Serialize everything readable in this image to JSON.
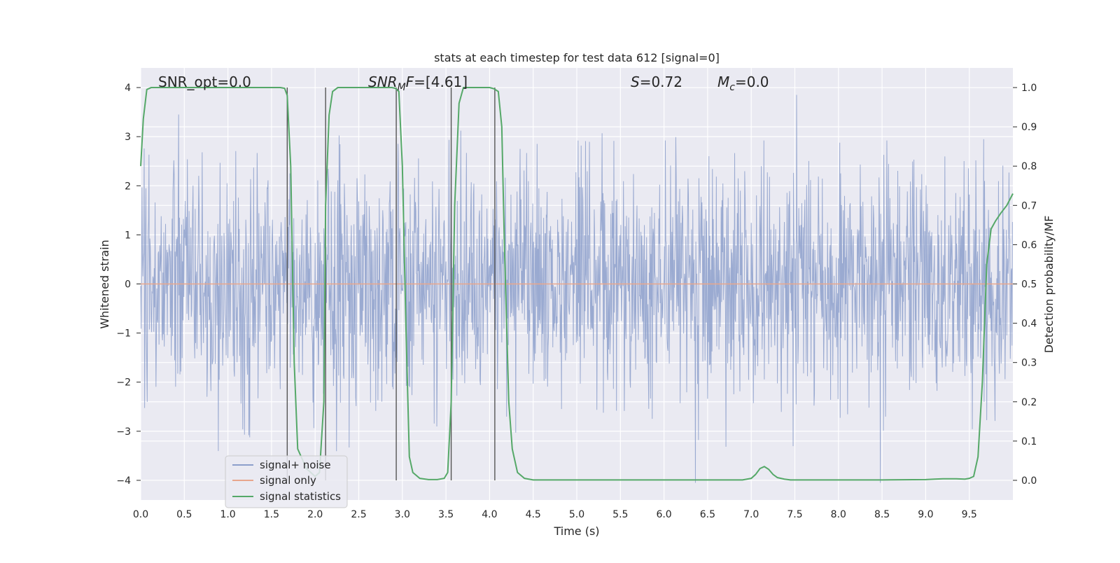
{
  "chart_data": {
    "type": "line",
    "title": "stats at each timestep for test data 612 [signal=0]",
    "xlabel": "Time (s)",
    "ylabel": "Whitened strain",
    "ylabel_right": "Detection probability/MF",
    "xlim": [
      0,
      10
    ],
    "ylim": [
      -4.4,
      4.4
    ],
    "ylim_right": [
      -0.05,
      1.05
    ],
    "grid": true,
    "legend_position": "lower-left",
    "x_ticks": [
      0.0,
      0.5,
      1.0,
      1.5,
      2.0,
      2.5,
      3.0,
      3.5,
      4.0,
      4.5,
      5.0,
      5.5,
      6.0,
      6.5,
      7.0,
      7.5,
      8.0,
      8.5,
      9.0,
      9.5
    ],
    "x_tick_labels": [
      "0.0",
      "0.5",
      "1.0",
      "1.5",
      "2.0",
      "2.5",
      "3.0",
      "3.5",
      "4.0",
      "4.5",
      "5.0",
      "5.5",
      "6.0",
      "6.5",
      "7.0",
      "7.5",
      "8.0",
      "8.5",
      "9.0",
      "9.5"
    ],
    "y_ticks": [
      -4,
      -3,
      -2,
      -1,
      0,
      1,
      2,
      3,
      4
    ],
    "y_tick_labels": [
      "−4",
      "−3",
      "−2",
      "−1",
      "0",
      "1",
      "2",
      "3",
      "4"
    ],
    "y_right_ticks": [
      0.0,
      0.1,
      0.2,
      0.3,
      0.4,
      0.5,
      0.6,
      0.7,
      0.8,
      0.9,
      1.0
    ],
    "y_right_tick_labels": [
      "0.0",
      "0.1",
      "0.2",
      "0.3",
      "0.4",
      "0.5",
      "0.6",
      "0.7",
      "0.8",
      "0.9",
      "1.0"
    ],
    "annotations": {
      "snr_opt": "SNR_opt=0.0",
      "snr_mf": "=[4.61]",
      "s_value": "=0.72",
      "mc_value": "=0.0"
    },
    "series": [
      {
        "name": "signal+ noise",
        "axis": "left",
        "color": "#8c9fcb",
        "description_amplitude": "noise band approximately between -2.4 and 2.4 with spikes reaching about -4.0 and 3.8",
        "sampling_interval": 0.005
      },
      {
        "name": "signal only",
        "axis": "left",
        "color": "#e8a68c",
        "x": [
          0,
          10
        ],
        "y": [
          0,
          0
        ]
      },
      {
        "name": "signal statistics",
        "axis": "right",
        "color": "#55a868",
        "x": [
          0.0,
          0.03,
          0.07,
          0.12,
          0.2,
          0.5,
          1.0,
          1.5,
          1.6,
          1.65,
          1.68,
          1.72,
          1.76,
          1.8,
          1.9,
          2.0,
          2.05,
          2.1,
          2.12,
          2.16,
          2.2,
          2.26,
          2.32,
          2.5,
          2.8,
          2.88,
          2.92,
          2.96,
          3.0,
          3.04,
          3.08,
          3.12,
          3.2,
          3.3,
          3.4,
          3.48,
          3.52,
          3.56,
          3.6,
          3.65,
          3.7,
          3.76,
          3.85,
          3.95,
          4.0,
          4.05,
          4.1,
          4.14,
          4.17,
          4.22,
          4.26,
          4.32,
          4.4,
          4.5,
          5.0,
          5.5,
          6.0,
          6.5,
          6.9,
          7.0,
          7.05,
          7.1,
          7.15,
          7.2,
          7.25,
          7.3,
          7.38,
          7.45,
          7.6,
          8.0,
          8.5,
          9.0,
          9.1,
          9.2,
          9.35,
          9.45,
          9.5,
          9.55,
          9.6,
          9.65,
          9.7,
          9.75,
          9.8,
          9.86,
          9.93,
          10.0
        ],
        "y": [
          0.8,
          0.92,
          0.995,
          1.0,
          1.0,
          1.0,
          1.0,
          1.0,
          1.0,
          0.998,
          0.98,
          0.8,
          0.3,
          0.08,
          0.03,
          0.01,
          0.02,
          0.2,
          0.7,
          0.93,
          0.99,
          1.0,
          1.0,
          1.0,
          1.0,
          1.0,
          0.998,
          0.99,
          0.8,
          0.4,
          0.06,
          0.02,
          0.005,
          0.002,
          0.002,
          0.005,
          0.02,
          0.2,
          0.7,
          0.96,
          1.0,
          1.0,
          1.0,
          1.0,
          1.0,
          0.997,
          0.99,
          0.9,
          0.6,
          0.2,
          0.08,
          0.02,
          0.005,
          0.001,
          0.001,
          0.001,
          0.001,
          0.001,
          0.001,
          0.005,
          0.015,
          0.03,
          0.035,
          0.028,
          0.015,
          0.007,
          0.003,
          0.001,
          0.001,
          0.001,
          0.001,
          0.002,
          0.003,
          0.004,
          0.004,
          0.003,
          0.005,
          0.01,
          0.06,
          0.25,
          0.55,
          0.64,
          0.66,
          0.68,
          0.7,
          0.73
        ]
      }
    ],
    "vertical_markers": {
      "color": "#555555",
      "x": [
        1.68,
        2.12,
        2.93,
        3.56,
        4.06
      ],
      "y_from": -4,
      "y_to": 4
    }
  }
}
